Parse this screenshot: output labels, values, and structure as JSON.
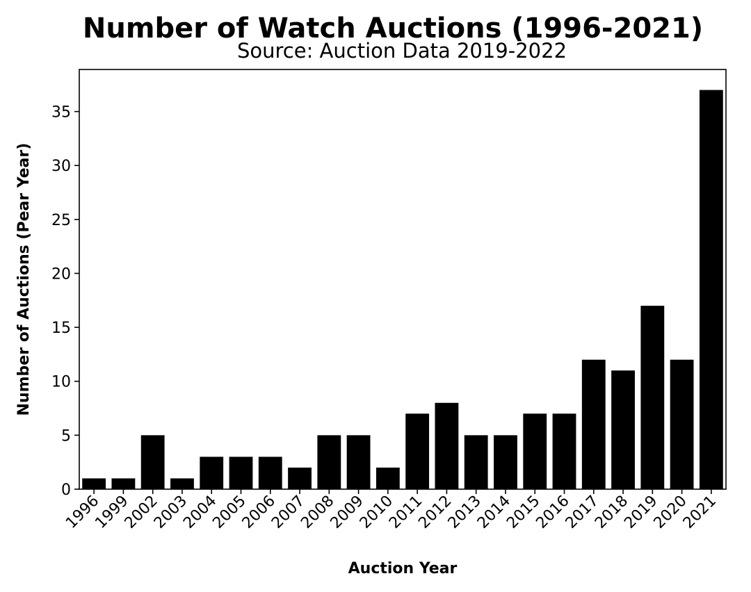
{
  "chart_data": {
    "type": "bar",
    "title": "Number of Watch Auctions (1996-2021)",
    "subtitle": "Source: Auction Data 2019-2022",
    "xlabel": "Auction Year",
    "ylabel": "Number of Auctions (Pear Year)",
    "categories": [
      "1996",
      "1999",
      "2002",
      "2003",
      "2004",
      "2005",
      "2006",
      "2007",
      "2008",
      "2009",
      "2010",
      "2011",
      "2012",
      "2013",
      "2014",
      "2015",
      "2016",
      "2017",
      "2018",
      "2019",
      "2020",
      "2021"
    ],
    "values": [
      1,
      1,
      5,
      1,
      3,
      3,
      3,
      2,
      5,
      5,
      2,
      7,
      8,
      5,
      5,
      7,
      7,
      12,
      11,
      17,
      12,
      37
    ],
    "ylim": [
      0,
      38.9
    ],
    "yticks": [
      "0",
      "5",
      "10",
      "15",
      "20",
      "25",
      "30",
      "35"
    ],
    "bar_color": "#000000",
    "grid": false,
    "legend": "none"
  }
}
